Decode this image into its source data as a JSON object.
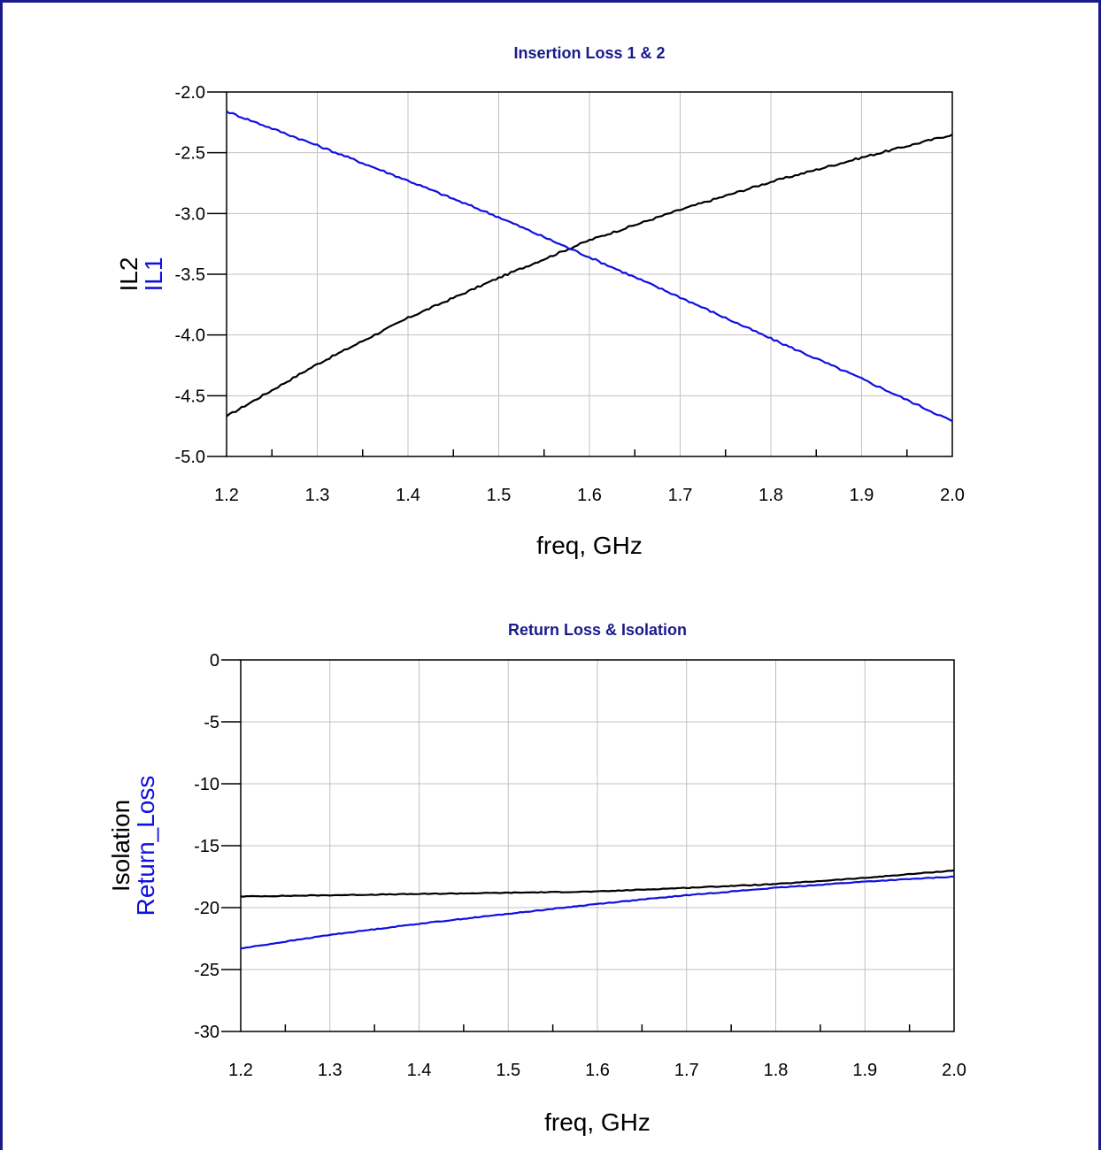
{
  "colors": {
    "frame": "#1a1a8c",
    "title": "#1a1a8c",
    "blue": "#1010e0",
    "black": "#000000",
    "grid": "#c0c0c0"
  },
  "chart_data": [
    {
      "type": "line",
      "title": "Insertion Loss 1 & 2",
      "xlabel": "freq, GHz",
      "ylabels": [
        "IL2",
        "IL1"
      ],
      "xlim": [
        1.2,
        2.0
      ],
      "ylim": [
        -5.0,
        -2.0
      ],
      "xticks": [
        "1.2",
        "1.3",
        "1.4",
        "1.5",
        "1.6",
        "1.7",
        "1.8",
        "1.9",
        "2.0"
      ],
      "yticks": [
        "-2.0",
        "-2.5",
        "-3.0",
        "-3.5",
        "-4.0",
        "-4.5",
        "-5.0"
      ],
      "grid": true,
      "x": [
        1.2,
        1.3,
        1.4,
        1.5,
        1.6,
        1.7,
        1.8,
        1.9,
        2.0
      ],
      "series": [
        {
          "name": "IL2",
          "color": "black",
          "values": [
            -4.67,
            -4.24,
            -3.86,
            -3.53,
            -3.22,
            -2.97,
            -2.74,
            -2.54,
            -2.35
          ]
        },
        {
          "name": "IL1",
          "color": "blue",
          "values": [
            -2.16,
            -2.44,
            -2.73,
            -3.03,
            -3.36,
            -3.69,
            -4.03,
            -4.36,
            -4.71
          ]
        }
      ]
    },
    {
      "type": "line",
      "title": "Return Loss & Isolation",
      "xlabel": "freq, GHz",
      "ylabels": [
        "Isolation",
        "Return_Loss"
      ],
      "xlim": [
        1.2,
        2.0
      ],
      "ylim": [
        -30,
        0
      ],
      "xticks": [
        "1.2",
        "1.3",
        "1.4",
        "1.5",
        "1.6",
        "1.7",
        "1.8",
        "1.9",
        "2.0"
      ],
      "yticks": [
        "0",
        "-5",
        "-10",
        "-15",
        "-20",
        "-25",
        "-30"
      ],
      "grid": true,
      "x": [
        1.2,
        1.3,
        1.4,
        1.5,
        1.6,
        1.7,
        1.8,
        1.9,
        2.0
      ],
      "series": [
        {
          "name": "Isolation",
          "color": "black",
          "values": [
            -19.1,
            -19.0,
            -18.9,
            -18.8,
            -18.7,
            -18.4,
            -18.1,
            -17.6,
            -17.0
          ]
        },
        {
          "name": "Return_Loss",
          "color": "blue",
          "values": [
            -23.3,
            -22.2,
            -21.3,
            -20.5,
            -19.7,
            -19.0,
            -18.4,
            -17.9,
            -17.5
          ]
        }
      ]
    }
  ]
}
